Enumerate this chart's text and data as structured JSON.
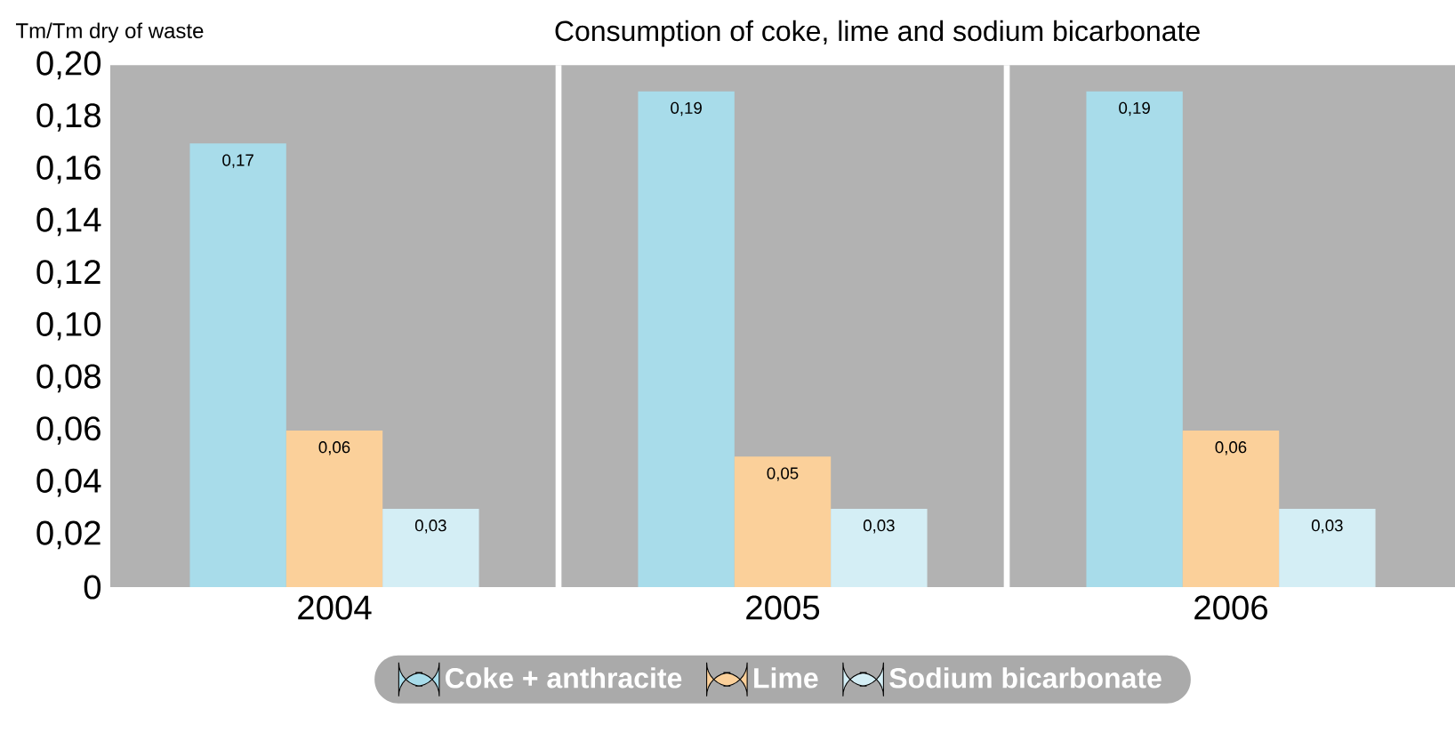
{
  "chart_data": {
    "type": "bar",
    "title": "Consumption of coke, lime and sodium bicarbonate",
    "ylabel": "Tm/Tm dry of waste",
    "categories": [
      "2004",
      "2005",
      "2006"
    ],
    "series": [
      {
        "name": "Coke + anthracite",
        "color": "#a8dcea",
        "values": [
          0.17,
          0.19,
          0.19
        ],
        "value_labels": [
          "0,17",
          "0,19",
          "0,19"
        ]
      },
      {
        "name": "Lime",
        "color": "#fbd09a",
        "values": [
          0.06,
          0.05,
          0.06
        ],
        "value_labels": [
          "0,06",
          "0,05",
          "0,06"
        ]
      },
      {
        "name": "Sodium bicarbonate",
        "color": "#d4eef5",
        "values": [
          0.03,
          0.03,
          0.03
        ],
        "value_labels": [
          "0,03",
          "0,03",
          "0,03"
        ]
      }
    ],
    "ylim": [
      0,
      0.2
    ],
    "yticks": [
      0,
      {
        "value": 0.02,
        "label": "0,02"
      },
      {
        "value": 0.04,
        "label": "0,04"
      },
      {
        "value": 0.06,
        "label": "0,06"
      },
      {
        "value": 0.08,
        "label": "0,08"
      },
      {
        "value": 0.1,
        "label": "0,10"
      },
      {
        "value": 0.12,
        "label": "0,12"
      },
      {
        "value": 0.14,
        "label": "0,14"
      },
      {
        "value": 0.16,
        "label": "0,16"
      },
      {
        "value": 0.18,
        "label": "0,18"
      },
      {
        "value": 0.2,
        "label": "0,20"
      }
    ],
    "grid": "x",
    "legend": "bottom"
  }
}
